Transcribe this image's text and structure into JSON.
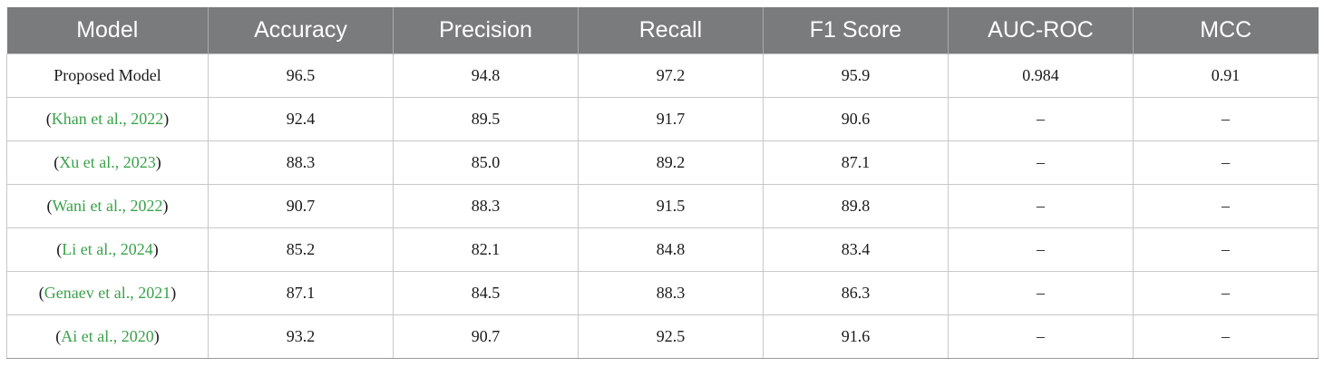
{
  "table": {
    "headers": [
      "Model",
      "Accuracy",
      "Precision",
      "Recall",
      "F1 Score",
      "AUC-ROC",
      "MCC"
    ],
    "rows": [
      {
        "model_plain": "Proposed Model",
        "cite": "",
        "cells": [
          "96.5",
          "94.8",
          "97.2",
          "95.9",
          "0.984",
          "0.91"
        ]
      },
      {
        "model_plain": "",
        "cite": "Khan et al., 2022",
        "cells": [
          "92.4",
          "89.5",
          "91.7",
          "90.6",
          "–",
          "–"
        ]
      },
      {
        "model_plain": "",
        "cite": "Xu et al., 2023",
        "cells": [
          "88.3",
          "85.0",
          "89.2",
          "87.1",
          "–",
          "–"
        ]
      },
      {
        "model_plain": "",
        "cite": "Wani et al., 2022",
        "cells": [
          "90.7",
          "88.3",
          "91.5",
          "89.8",
          "–",
          "–"
        ]
      },
      {
        "model_plain": "",
        "cite": "Li et al., 2024",
        "cells": [
          "85.2",
          "82.1",
          "84.8",
          "83.4",
          "–",
          "–"
        ]
      },
      {
        "model_plain": "",
        "cite": "Genaev et al., 2021",
        "cells": [
          "87.1",
          "84.5",
          "88.3",
          "86.3",
          "–",
          "–"
        ]
      },
      {
        "model_plain": "",
        "cite": "Ai et al., 2020",
        "cells": [
          "93.2",
          "90.7",
          "92.5",
          "91.6",
          "–",
          "–"
        ]
      }
    ]
  },
  "colors": {
    "header_bg": "#7a7b7c",
    "header_text": "#ffffff",
    "citation_link": "#3aa24a",
    "grid": "#c8c8c8"
  }
}
